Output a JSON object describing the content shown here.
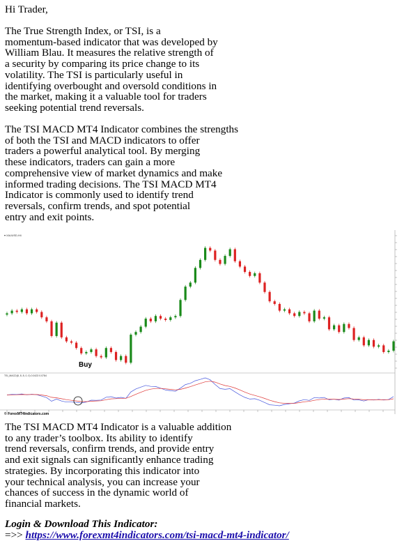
{
  "email": {
    "greeting": "Hi Trader,",
    "para1": "The True Strength Index, or TSI, is a\nmomentum-based indicator that was developed by\nWilliam Blau. It measures the relative strength of\na security by comparing its price change to its\nvolatility. The TSI is particularly useful in\nidentifying overbought and oversold conditions in\nthe market, making it a valuable tool for traders\nseeking potential trend reversals.",
    "para2": "The TSI MACD MT4 Indicator combines the strengths\nof both the TSI and MACD indicators to offer\ntraders a powerful analytical tool. By merging\nthese indicators, traders can gain a more\ncomprehensive view of market dynamics and make\ninformed trading decisions. The TSI MACD MT4\nIndicator is commonly used to identify trend\nreversals, confirm trends, and spot potential\nentry and exit points.",
    "para3": "The TSI MACD MT4 Indicator is a valuable addition\nto any trader’s toolbox. Its ability to identify\ntrend reversals, confirm trends, and provide entry\nand exit signals can significantly enhance trading\nstrategies. By incorporating this indicator into\nyour technical analysis, you can increase your\nchances of success in the dynamic world of\nfinancial markets.",
    "login_label": "Login & Download This Indicator:",
    "link_prefix": "=>> ",
    "link_text": "https://www.forexmt4indicators.com/tsi-macd-mt4-indicator/"
  },
  "chart_image": {
    "symbol_label": "▾ XAUUSD,H4",
    "buy_label": "Buy",
    "indicator_label": "TSI_MACD(8, 8, 8, 0, 0) 0.0423 0.0784",
    "watermark": "© ForexMT4Indicators.com",
    "colors": {
      "bull": "#1a8a1a",
      "bear": "#dd2222",
      "tsi_line": "#4455dd",
      "signal_line": "#dd3333",
      "grid": "#ffffff"
    }
  },
  "chart_data": {
    "type": "candlestick",
    "panels": [
      "price",
      "tsi_macd"
    ],
    "close_prices": [
      1938,
      1940,
      1939,
      1941,
      1938,
      1941,
      1939,
      1935,
      1932,
      1921,
      1931,
      1920,
      1917,
      1916,
      1912,
      1908,
      1909,
      1911,
      1906,
      1905,
      1912,
      1909,
      1903,
      1906,
      1901,
      1922,
      1924,
      1928,
      1934,
      1932,
      1936,
      1934,
      1933,
      1935,
      1936,
      1948,
      1958,
      1961,
      1972,
      1978,
      1987,
      1985,
      1978,
      1975,
      1981,
      1986,
      1977,
      1973,
      1969,
      1966,
      1968,
      1961,
      1954,
      1947,
      1945,
      1940,
      1941,
      1938,
      1936,
      1939,
      1938,
      1932,
      1940,
      1934,
      1935,
      1926,
      1929,
      1924,
      1930,
      1927,
      1918,
      1920,
      1914,
      1918,
      1913,
      1914,
      1909,
      1910,
      1917
    ],
    "buy_signal_index": 23
  }
}
